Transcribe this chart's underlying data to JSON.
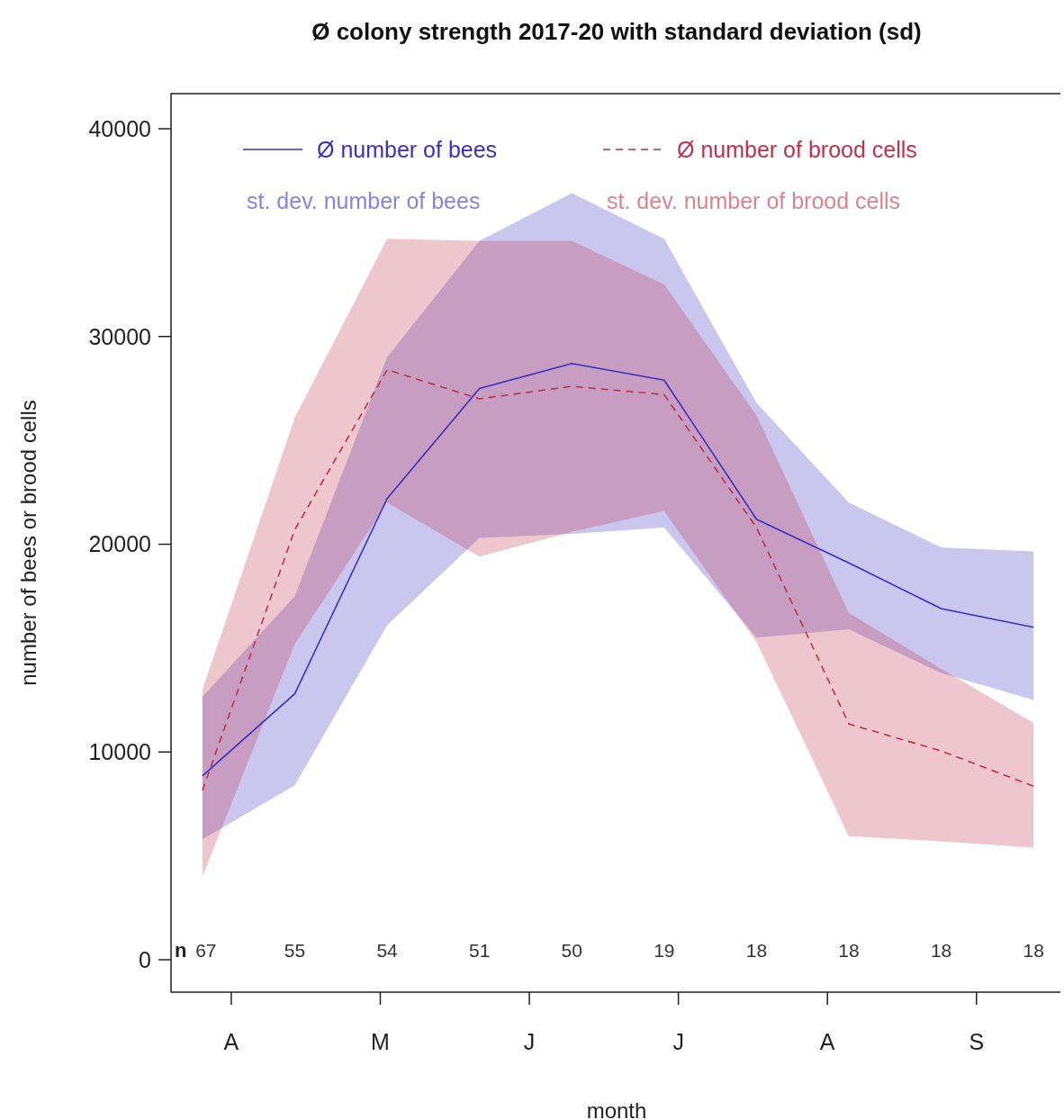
{
  "chart_data": {
    "type": "line",
    "title": "Ø colony strength 2017-20 with standard deviation (sd)",
    "xlabel": "month",
    "ylabel": "number of bees or brood cells",
    "categories": [
      "67",
      "55",
      "54",
      "51",
      "50",
      "19",
      "18",
      "18",
      "18",
      "18"
    ],
    "ylim": [
      -1560,
      41690
    ],
    "yticks": [
      0,
      10000,
      20000,
      30000,
      40000
    ],
    "grid": false,
    "legend": "top",
    "marker": "none",
    "series": [
      {
        "name": "Ø number of bees",
        "color": "#3a2fc0",
        "line_style": "solid",
        "values": [
          8850,
          12800,
          22200,
          27500,
          28700,
          27900,
          21200,
          19100,
          16900,
          16000
        ],
        "lower": [
          5800,
          8400,
          16100,
          20300,
          20500,
          20800,
          15500,
          15900,
          13800,
          12500
        ],
        "upper": [
          12650,
          17500,
          29000,
          34600,
          36900,
          34700,
          26800,
          22000,
          19850,
          19650
        ]
      },
      {
        "name": "Ø number of brood cells",
        "color": "#c0304a",
        "line_style": "dashed",
        "values": [
          8150,
          20700,
          28400,
          27000,
          27600,
          27200,
          20800,
          11350,
          10050,
          8350
        ],
        "lower": [
          4000,
          15200,
          22000,
          19400,
          20600,
          21600,
          15300,
          5950,
          5700,
          5400
        ],
        "upper": [
          13000,
          26100,
          34700,
          34600,
          34600,
          32500,
          26200,
          16700,
          14000,
          11400
        ]
      }
    ],
    "annotations": [
      "st. dev. number of bees",
      "st. dev. number of brood cells",
      "n",
      "A",
      "M",
      "J",
      "J",
      "A",
      "S"
    ]
  }
}
